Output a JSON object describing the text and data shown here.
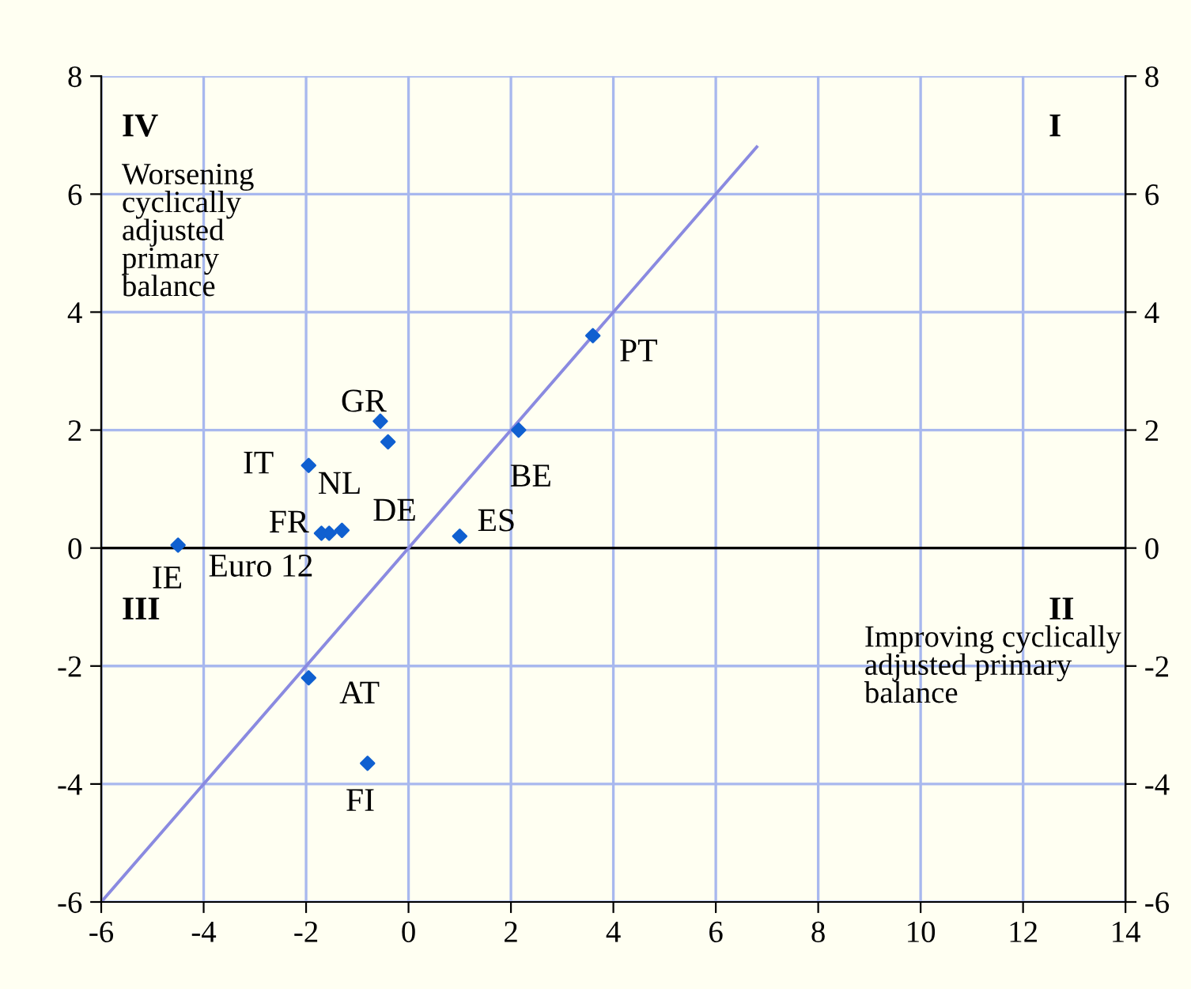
{
  "chart_data": {
    "type": "scatter",
    "xlim": [
      -6,
      14
    ],
    "xticks": [
      -6,
      -4,
      -2,
      0,
      2,
      4,
      6,
      8,
      10,
      12,
      14
    ],
    "ylim": [
      -6,
      8
    ],
    "yticks": [
      -6,
      -4,
      -2,
      0,
      2,
      4,
      6,
      8
    ],
    "y2lim": [
      -6,
      8
    ],
    "y2ticks": [
      -6,
      -4,
      -2,
      0,
      2,
      4,
      6,
      8
    ],
    "grid": true,
    "marker": "diamond",
    "series": [
      {
        "color": "#1060d0",
        "x": [
          -0.55,
          -0.4,
          -1.95,
          -1.7,
          -1.55,
          -1.3,
          -4.5,
          1.0,
          2.15,
          3.6,
          -1.95,
          -0.8
        ],
        "values": [
          2.15,
          1.8,
          1.4,
          0.25,
          0.25,
          0.3,
          0.05,
          0.2,
          2.0,
          3.6,
          -2.2,
          -3.65
        ]
      },
      {
        "type": "line",
        "color": "#8a8ae0",
        "x": [
          -6,
          6.8
        ],
        "values": [
          -6,
          6.8
        ],
        "marker": "none"
      }
    ],
    "ref_lines": [
      {
        "axis": "y",
        "value": 0,
        "color": "#000000"
      }
    ],
    "annotations": [
      {
        "text": "GR",
        "x": -0.55,
        "y": 2.15
      },
      {
        "text": "NL",
        "x": -0.4,
        "y": 1.8
      },
      {
        "text": "IT",
        "x": -1.95,
        "y": 1.4
      },
      {
        "text": "FR",
        "x": -1.7,
        "y": 0.25
      },
      {
        "text": "Euro 12",
        "x": -1.55,
        "y": 0.25
      },
      {
        "text": "DE",
        "x": -1.3,
        "y": 0.3
      },
      {
        "text": "IE",
        "x": -4.5,
        "y": 0.05
      },
      {
        "text": "ES",
        "x": 1.0,
        "y": 0.2
      },
      {
        "text": "BE",
        "x": 2.15,
        "y": 2.0
      },
      {
        "text": "PT",
        "x": 3.6,
        "y": 3.6
      },
      {
        "text": "AT",
        "x": -1.95,
        "y": -2.2
      },
      {
        "text": "FI",
        "x": -0.8,
        "y": -3.65
      },
      "IV",
      "Worsening\ncyclically\nadjusted\nprimary\nbalance",
      "I",
      "III",
      "II",
      "Improving cyclically\nadjusted primary\nbalance"
    ]
  }
}
